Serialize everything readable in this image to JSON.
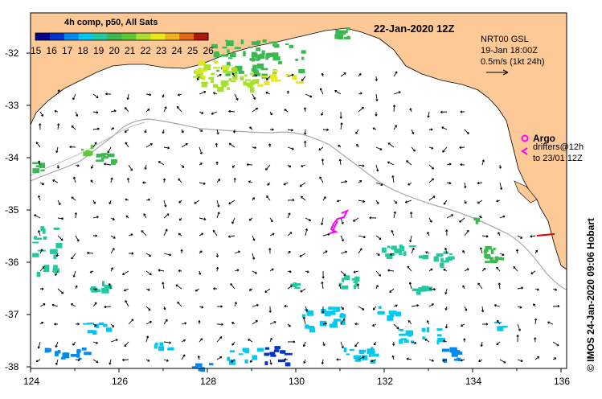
{
  "title": "22-Jan-2020 12Z",
  "colorbar": {
    "title": "4h comp, p50, All Sats",
    "labels": [
      "15",
      "16",
      "17",
      "18",
      "19",
      "20",
      "21",
      "22",
      "23",
      "24",
      "25",
      "26"
    ],
    "colors": [
      "#00008b",
      "#0033cc",
      "#0088ee",
      "#00c8f0",
      "#20c9a0",
      "#3cb850",
      "#5ec832",
      "#a8e030",
      "#e8e81a",
      "#f0b020",
      "#e06818",
      "#b01808"
    ]
  },
  "info": {
    "line1": "NRT00 GSL",
    "line2": "19-Jan 18:00Z",
    "line3": "0.5m/s (1kt 24h)"
  },
  "legend": {
    "argo_label": "Argo",
    "drifters_line1": "drifters@12h",
    "drifters_line2": "to 23/01 12Z",
    "argo_color": "#ff00ff"
  },
  "credit": "© IMOS 24-Jan-2020 09:06 Hobart",
  "axes": {
    "x_ticks": [
      "124",
      "126",
      "128",
      "130",
      "132",
      "134",
      "136"
    ],
    "y_ticks": [
      "-32",
      "-33",
      "-34",
      "-35",
      "-36",
      "-37",
      "-38"
    ]
  },
  "colors": {
    "land": "#fdc996",
    "sea": "#ffffff",
    "shelf": "#a8a8a8",
    "arrow": "#000000"
  }
}
